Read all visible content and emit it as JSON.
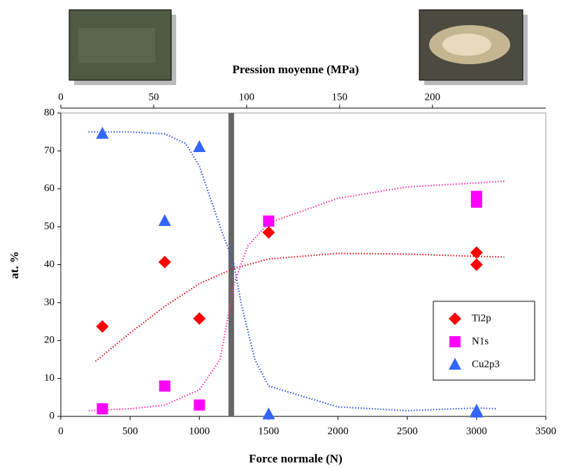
{
  "chart_data": {
    "type": "scatter",
    "xlabel": "Force normale (N)",
    "x2label": "Pression moyenne (MPa)",
    "ylabel": "at. %",
    "xlim": [
      0,
      3500
    ],
    "xticks": [
      0,
      500,
      1000,
      1500,
      2000,
      2500,
      3000,
      3500
    ],
    "x2lim": [
      0,
      261
    ],
    "x2ticks": [
      0,
      50,
      100,
      150,
      200
    ],
    "ylim": [
      0,
      80
    ],
    "yticks": [
      0,
      10,
      20,
      30,
      40,
      50,
      60,
      70,
      80
    ],
    "vline_x": 1230,
    "legend": "lower right",
    "series": [
      {
        "name": "Ti2p",
        "color": "#ff0000",
        "marker": "diamond",
        "x": [
          300,
          750,
          1000,
          1500,
          3000,
          3000
        ],
        "values": [
          23.7,
          40.7,
          25.8,
          48.5,
          43.2,
          40
        ]
      },
      {
        "name": "N1s",
        "color": "#ff00ff",
        "marker": "square",
        "x": [
          300,
          750,
          1000,
          1500,
          3000,
          3000
        ],
        "values": [
          2,
          8,
          3,
          51.5,
          58,
          56.5
        ]
      },
      {
        "name": "Cu2p3",
        "color": "#3366ff",
        "marker": "triangle",
        "x": [
          300,
          750,
          1000,
          1500,
          3000,
          3000
        ],
        "values": [
          74.5,
          51.5,
          71,
          0.5,
          1.5,
          1
        ]
      }
    ],
    "trendlines": [
      {
        "color": "#e0101a",
        "x": [
          250,
          500,
          750,
          1000,
          1250,
          1500,
          2000,
          2500,
          3000,
          3200
        ],
        "values": [
          14.5,
          22,
          29,
          35,
          39,
          41.5,
          43,
          42.8,
          42.2,
          42
        ]
      },
      {
        "color": "#ff33aa",
        "x": [
          200,
          500,
          750,
          1000,
          1150,
          1250,
          1350,
          1500,
          2000,
          2500,
          3200
        ],
        "values": [
          1.5,
          2,
          3,
          7,
          15,
          35,
          45,
          51,
          57.5,
          60.5,
          62
        ]
      },
      {
        "color": "#3355ee",
        "x": [
          200,
          500,
          750,
          900,
          1000,
          1150,
          1250,
          1300,
          1400,
          1500,
          2000,
          2500,
          3000,
          3150
        ],
        "values": [
          75,
          75,
          74.5,
          72,
          66,
          50,
          40,
          30,
          15,
          8,
          2.5,
          1.5,
          2.2,
          2
        ]
      }
    ]
  }
}
